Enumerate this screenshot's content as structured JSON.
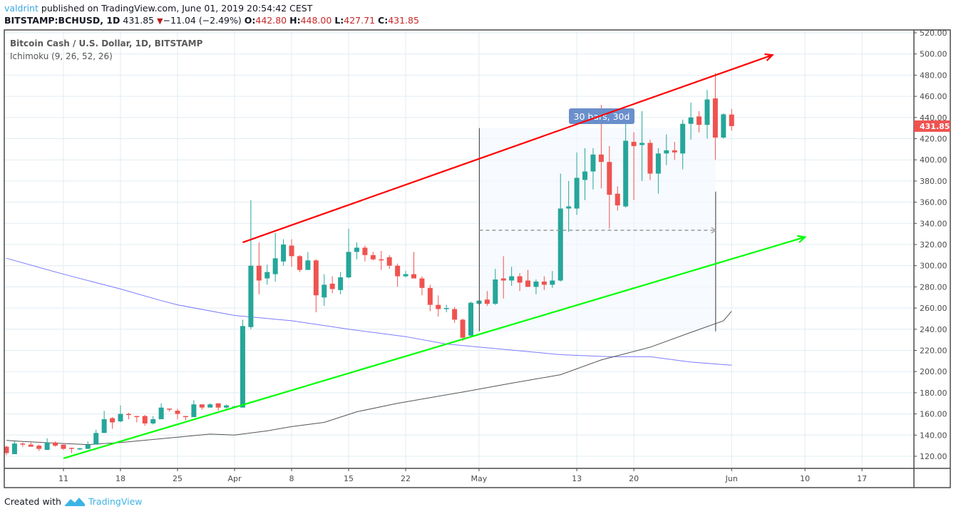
{
  "header": {
    "user": "valdrint",
    "published": "published on TradingView.com, June 01, 2019 20:54:42 CEST",
    "symbol": "BITSTAMP:BCHUSD, 1D",
    "last": "431.85",
    "direction_icon": "triangle-down-icon",
    "change": "−11.04 (−2.49%)",
    "o_label": "O:",
    "o": "442.80",
    "h_label": "H:",
    "h": "448.00",
    "l_label": "L:",
    "l": "427.71",
    "c_label": "C:",
    "c": "431.85"
  },
  "legend": {
    "title": "Bitcoin Cash / U.S. Dollar, 1D, BITSTAMP",
    "indicator": "Ichimoku (9, 26, 52, 26)"
  },
  "footer": {
    "created_with": "Created with",
    "brand": "TradingView"
  },
  "colors": {
    "up": "#26a69a",
    "down": "#ef5350",
    "upper_trendline": "#ff0000",
    "lower_trendline": "#00ff00",
    "ichimoku_blue": "#7b7bff",
    "ichimoku_gray": "#555555",
    "measure_label": "#6a8fcb"
  },
  "chart_data": {
    "type": "candlestick",
    "title": "Bitcoin Cash / U.S. Dollar, 1D, BITSTAMP",
    "ylim": [
      110,
      525
    ],
    "y_ticks": [
      "120.00",
      "140.00",
      "160.00",
      "180.00",
      "200.00",
      "220.00",
      "240.00",
      "260.00",
      "280.00",
      "300.00",
      "320.00",
      "340.00",
      "360.00",
      "380.00",
      "400.00",
      "420.00",
      "440.00",
      "460.00",
      "480.00",
      "500.00",
      "520.00"
    ],
    "x_ticks": [
      {
        "date": "2019-03-11",
        "label": "11"
      },
      {
        "date": "2019-03-18",
        "label": "18"
      },
      {
        "date": "2019-03-25",
        "label": "25"
      },
      {
        "date": "2019-04-01",
        "label": "Apr"
      },
      {
        "date": "2019-04-08",
        "label": "8"
      },
      {
        "date": "2019-04-15",
        "label": "15"
      },
      {
        "date": "2019-04-22",
        "label": "22"
      },
      {
        "date": "2019-05-01",
        "label": "May"
      },
      {
        "date": "2019-05-13",
        "label": "13"
      },
      {
        "date": "2019-05-20",
        "label": "20"
      },
      {
        "date": "2019-06-01",
        "label": "Jun"
      },
      {
        "date": "2019-06-10",
        "label": "10"
      },
      {
        "date": "2019-06-17",
        "label": "17"
      }
    ],
    "grid": true,
    "last_price_label": "431.85",
    "ohlc_columns": [
      "date",
      "open",
      "high",
      "low",
      "close"
    ],
    "ohlc": [
      [
        "2019-03-04",
        129,
        130,
        121,
        123
      ],
      [
        "2019-03-05",
        122,
        134,
        122,
        132
      ],
      [
        "2019-03-06",
        132,
        133,
        129,
        131
      ],
      [
        "2019-03-07",
        131,
        133,
        129,
        129
      ],
      [
        "2019-03-08",
        130,
        131,
        125,
        127
      ],
      [
        "2019-03-09",
        126,
        137,
        126,
        133
      ],
      [
        "2019-03-10",
        133,
        134,
        129,
        130
      ],
      [
        "2019-03-11",
        131,
        131,
        126,
        127
      ],
      [
        "2019-03-12",
        128,
        128,
        123,
        127
      ],
      [
        "2019-03-13",
        127,
        128,
        126,
        127.5
      ],
      [
        "2019-03-14",
        127,
        134,
        127,
        131
      ],
      [
        "2019-03-15",
        131,
        145,
        131,
        142
      ],
      [
        "2019-03-16",
        142,
        163,
        142,
        155
      ],
      [
        "2019-03-17",
        156,
        157,
        146,
        152
      ],
      [
        "2019-03-18",
        153,
        168,
        152,
        160
      ],
      [
        "2019-03-19",
        160,
        161,
        155,
        159
      ],
      [
        "2019-03-20",
        158,
        158,
        152,
        157
      ],
      [
        "2019-03-21",
        158,
        159,
        149,
        151
      ],
      [
        "2019-03-22",
        151,
        158,
        150,
        155
      ],
      [
        "2019-03-23",
        155,
        170,
        155,
        166
      ],
      [
        "2019-03-24",
        165,
        165,
        162,
        164
      ],
      [
        "2019-03-25",
        163,
        165,
        155,
        160
      ],
      [
        "2019-03-26",
        158,
        158,
        154,
        157
      ],
      [
        "2019-03-27",
        157,
        173,
        157,
        169
      ],
      [
        "2019-03-28",
        169,
        169,
        164,
        166
      ],
      [
        "2019-03-29",
        166,
        170,
        166,
        169
      ],
      [
        "2019-03-30",
        170,
        170,
        163,
        166
      ],
      [
        "2019-03-31",
        166,
        169,
        165,
        168
      ],
      [
        "2019-04-01",
        167,
        168,
        166,
        167
      ],
      [
        "2019-04-02",
        166,
        249,
        166,
        243
      ],
      [
        "2019-04-03",
        242,
        362,
        240,
        300
      ],
      [
        "2019-04-04",
        300,
        322,
        273,
        286
      ],
      [
        "2019-04-05",
        288,
        301,
        282,
        294
      ],
      [
        "2019-04-06",
        292,
        331,
        285,
        307
      ],
      [
        "2019-04-07",
        304,
        325,
        300,
        320
      ],
      [
        "2019-04-08",
        319,
        325,
        299,
        309
      ],
      [
        "2019-04-09",
        309,
        310,
        294,
        296
      ],
      [
        "2019-04-10",
        296,
        313,
        296,
        305
      ],
      [
        "2019-04-11",
        305,
        306,
        256,
        272
      ],
      [
        "2019-04-12",
        270,
        292,
        262,
        282
      ],
      [
        "2019-04-13",
        283,
        290,
        274,
        278
      ],
      [
        "2019-04-14",
        277,
        294,
        273,
        289
      ],
      [
        "2019-04-15",
        289,
        335,
        288,
        313
      ],
      [
        "2019-04-16",
        313,
        322,
        306,
        317
      ],
      [
        "2019-04-17",
        317,
        319,
        304,
        310
      ],
      [
        "2019-04-18",
        310,
        313,
        305,
        306
      ],
      [
        "2019-04-19",
        306,
        314,
        296,
        305
      ],
      [
        "2019-04-20",
        308,
        310,
        297,
        300
      ],
      [
        "2019-04-21",
        300,
        302,
        280,
        290
      ],
      [
        "2019-04-22",
        290,
        295,
        289,
        292
      ],
      [
        "2019-04-23",
        292,
        313,
        288,
        288
      ],
      [
        "2019-04-24",
        288,
        290,
        272,
        279
      ],
      [
        "2019-04-25",
        279,
        282,
        257,
        263
      ],
      [
        "2019-04-26",
        263,
        272,
        252,
        259
      ],
      [
        "2019-04-27",
        260,
        263,
        256,
        260
      ],
      [
        "2019-04-28",
        259,
        261,
        246,
        249
      ],
      [
        "2019-04-29",
        249,
        250,
        229,
        232
      ],
      [
        "2019-04-30",
        234,
        266,
        233,
        265
      ],
      [
        "2019-05-01",
        264,
        267,
        263,
        267
      ],
      [
        "2019-05-02",
        268,
        276,
        262,
        264
      ],
      [
        "2019-05-03",
        264,
        297,
        263,
        287
      ],
      [
        "2019-05-04",
        288,
        309,
        269,
        286
      ],
      [
        "2019-05-05",
        286,
        299,
        281,
        290
      ],
      [
        "2019-05-06",
        290,
        293,
        276,
        284
      ],
      [
        "2019-05-07",
        286,
        296,
        280,
        280
      ],
      [
        "2019-05-08",
        280,
        287,
        273,
        285
      ],
      [
        "2019-05-09",
        285,
        290,
        277,
        282
      ],
      [
        "2019-05-10",
        282,
        295,
        279,
        286
      ],
      [
        "2019-05-11",
        286,
        387,
        285,
        354
      ],
      [
        "2019-05-12",
        354,
        380,
        332,
        356
      ],
      [
        "2019-05-13",
        354,
        407,
        348,
        383
      ],
      [
        "2019-05-14",
        381,
        411,
        362,
        389
      ],
      [
        "2019-05-15",
        389,
        411,
        372,
        405
      ],
      [
        "2019-05-16",
        405,
        452,
        373,
        398
      ],
      [
        "2019-05-17",
        398,
        413,
        335,
        367
      ],
      [
        "2019-05-18",
        368,
        375,
        352,
        357
      ],
      [
        "2019-05-19",
        356,
        440,
        355,
        418
      ],
      [
        "2019-05-20",
        417,
        426,
        362,
        413
      ],
      [
        "2019-05-21",
        414,
        446,
        380,
        416
      ],
      [
        "2019-05-22",
        416,
        419,
        381,
        387
      ],
      [
        "2019-05-23",
        387,
        411,
        368,
        406
      ],
      [
        "2019-05-24",
        406,
        424,
        395,
        409
      ],
      [
        "2019-05-25",
        409,
        417,
        400,
        407
      ],
      [
        "2019-05-26",
        406,
        438,
        391,
        434
      ],
      [
        "2019-05-27",
        434,
        454,
        419,
        440
      ],
      [
        "2019-05-28",
        441,
        446,
        426,
        433
      ],
      [
        "2019-05-29",
        433,
        466,
        420,
        457
      ],
      [
        "2019-05-30",
        458,
        482,
        400,
        421
      ],
      [
        "2019-05-31",
        421,
        444,
        420,
        443
      ],
      [
        "2019-06-01",
        442.8,
        448.0,
        427.71,
        431.85
      ]
    ],
    "indicator_lines": [
      {
        "color": "#7b7bff",
        "points": [
          [
            "2019-03-04",
            307
          ],
          [
            "2019-03-11",
            292
          ],
          [
            "2019-03-18",
            278
          ],
          [
            "2019-03-23",
            267
          ],
          [
            "2019-03-25",
            263
          ],
          [
            "2019-04-01",
            253
          ],
          [
            "2019-04-08",
            248
          ],
          [
            "2019-04-15",
            240
          ],
          [
            "2019-04-22",
            233
          ],
          [
            "2019-04-27",
            226
          ],
          [
            "2019-05-04",
            221
          ],
          [
            "2019-05-11",
            216
          ],
          [
            "2019-05-17",
            214
          ],
          [
            "2019-05-22",
            214
          ],
          [
            "2019-05-27",
            209
          ],
          [
            "2019-06-01",
            206
          ]
        ]
      },
      {
        "color": "#555555",
        "points": [
          [
            "2019-03-04",
            135
          ],
          [
            "2019-03-06",
            134
          ],
          [
            "2019-03-11",
            132
          ],
          [
            "2019-03-14",
            131
          ],
          [
            "2019-03-18",
            133
          ],
          [
            "2019-03-25",
            138
          ],
          [
            "2019-03-29",
            141
          ],
          [
            "2019-04-01",
            140
          ],
          [
            "2019-04-05",
            144
          ],
          [
            "2019-04-08",
            148
          ],
          [
            "2019-04-12",
            152
          ],
          [
            "2019-04-16",
            162
          ],
          [
            "2019-04-21",
            170
          ],
          [
            "2019-04-30",
            182
          ],
          [
            "2019-05-05",
            189
          ],
          [
            "2019-05-11",
            197
          ],
          [
            "2019-05-16",
            211
          ],
          [
            "2019-05-22",
            223
          ],
          [
            "2019-05-27",
            237
          ],
          [
            "2019-05-31",
            248
          ],
          [
            "2019-06-01",
            257
          ]
        ]
      }
    ],
    "trendlines": [
      {
        "color": "#ff0000",
        "from": [
          "2019-04-02",
          322
        ],
        "to": [
          "2019-06-06",
          499
        ],
        "arrow": true
      },
      {
        "color": "#00ff00",
        "from": [
          "2019-03-11",
          118
        ],
        "to": [
          "2019-06-10",
          327
        ],
        "arrow": true
      }
    ],
    "date_range_measure": {
      "from": "2019-05-01",
      "to": "2019-05-31",
      "price_level": 333.5,
      "left_top": 430,
      "right_top": 370,
      "bottom": 238,
      "label": "30 bars, 30d"
    }
  }
}
